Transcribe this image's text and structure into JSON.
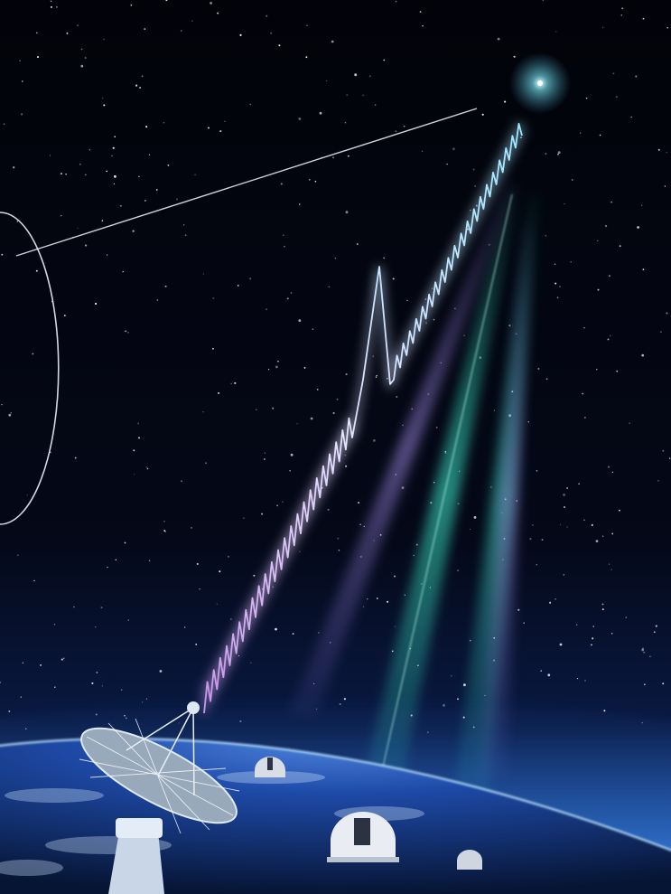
{
  "scene": {
    "colors": {
      "sky_top": "#020309",
      "sky_mid": "#050a1c",
      "horizon_glow": "#2a6fd6",
      "earth_deep": "#0b1f5a",
      "earth_light": "#5a8fe0",
      "signal_start": "#c79ae8",
      "signal_end": "#9fe7ff",
      "beam_teal": "#2fe0c0",
      "beam_violet": "#9a7ff0",
      "source_glow": "#7ff0ff"
    },
    "icons": [
      "radio-telescope-icon",
      "observatory-dome-icon"
    ]
  }
}
